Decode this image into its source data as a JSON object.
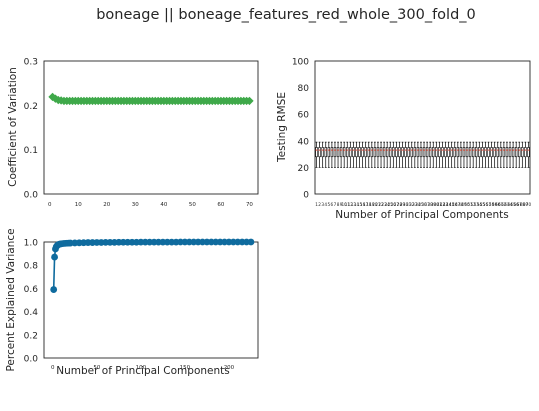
{
  "figure": {
    "title": "boneage || boneage_features_red_whole_300_fold_0"
  },
  "chart_data": [
    {
      "id": "cv",
      "type": "scatter",
      "title": "",
      "xlabel": "",
      "ylabel": "Coefficient of Variation",
      "xlim": [
        -2,
        73
      ],
      "ylim": [
        0,
        0.3
      ],
      "xticks": [
        0,
        10,
        20,
        30,
        40,
        50,
        60,
        70
      ],
      "yticks": [
        0.0,
        0.1,
        0.2,
        0.3
      ],
      "ytick_labels": [
        "0.0",
        "0.1",
        "0.2",
        "0.3"
      ],
      "marker": "diamond",
      "color": "#3fa94a",
      "series": [
        {
          "x": [
            1,
            2,
            3,
            4,
            5,
            6,
            7,
            8,
            9,
            10,
            11,
            12,
            13,
            14,
            15,
            16,
            17,
            18,
            19,
            20,
            21,
            22,
            23,
            24,
            25,
            26,
            27,
            28,
            29,
            30,
            31,
            32,
            33,
            34,
            35,
            36,
            37,
            38,
            39,
            40,
            41,
            42,
            43,
            44,
            45,
            46,
            47,
            48,
            49,
            50,
            51,
            52,
            53,
            54,
            55,
            56,
            57,
            58,
            59,
            60,
            61,
            62,
            63,
            64,
            65,
            66,
            67,
            68,
            69,
            70
          ],
          "y": [
            0.219,
            0.215,
            0.212,
            0.211,
            0.21,
            0.21,
            0.21,
            0.21,
            0.21,
            0.21,
            0.21,
            0.21,
            0.21,
            0.21,
            0.21,
            0.21,
            0.21,
            0.21,
            0.21,
            0.21,
            0.21,
            0.21,
            0.21,
            0.21,
            0.21,
            0.21,
            0.21,
            0.21,
            0.21,
            0.21,
            0.21,
            0.21,
            0.21,
            0.21,
            0.21,
            0.21,
            0.21,
            0.21,
            0.21,
            0.21,
            0.21,
            0.21,
            0.21,
            0.21,
            0.21,
            0.21,
            0.21,
            0.21,
            0.21,
            0.21,
            0.21,
            0.21,
            0.21,
            0.21,
            0.21,
            0.21,
            0.21,
            0.21,
            0.21,
            0.21,
            0.21,
            0.21,
            0.21,
            0.21,
            0.21,
            0.21,
            0.21,
            0.21,
            0.21,
            0.21
          ]
        }
      ]
    },
    {
      "id": "rmse",
      "type": "boxplot",
      "title": "",
      "xlabel": "Number of Principal Components",
      "ylabel": "Testing RMSE",
      "ylim": [
        0,
        100
      ],
      "yticks": [
        0,
        20,
        40,
        60,
        80,
        100
      ],
      "xtick_label_count": 70,
      "box_count": 70,
      "box_stats": {
        "whisker_low": [
          20,
          20,
          20,
          20,
          20,
          20,
          20,
          20,
          20,
          20,
          20,
          20,
          20,
          20,
          20,
          20,
          20,
          20,
          20,
          20,
          20,
          20,
          20,
          20,
          20,
          20,
          20,
          20,
          20,
          20,
          20,
          20,
          20,
          20,
          20,
          20,
          20,
          20,
          20,
          20,
          20,
          20,
          20,
          20,
          20,
          20,
          20,
          20,
          20,
          20,
          20,
          20,
          20,
          20,
          20,
          20,
          20,
          20,
          20,
          20,
          20,
          20,
          20,
          20,
          20,
          20,
          20,
          20,
          20,
          20
        ],
        "q1": [
          28,
          28,
          28,
          28,
          28,
          28,
          28,
          28,
          28,
          28,
          28,
          28,
          28,
          28,
          28,
          28,
          28,
          28,
          28,
          28,
          28,
          28,
          28,
          28,
          28,
          28,
          28,
          28,
          28,
          28,
          28,
          28,
          28,
          28,
          28,
          28,
          28,
          28,
          28,
          28,
          28,
          28,
          28,
          28,
          28,
          28,
          28,
          28,
          28,
          28,
          28,
          28,
          28,
          28,
          28,
          28,
          28,
          28,
          28,
          28,
          28,
          28,
          28,
          28,
          28,
          28,
          28,
          28,
          28,
          28
        ],
        "median": [
          33,
          33,
          33,
          33,
          33,
          33,
          33,
          33,
          33,
          33,
          33,
          33,
          33,
          33,
          33,
          33,
          33,
          33,
          33,
          33,
          33,
          33,
          33,
          33,
          33,
          33,
          33,
          33,
          33,
          33,
          33,
          33,
          33,
          33,
          33,
          33,
          33,
          33,
          33,
          33,
          33,
          33,
          33,
          33,
          33,
          33,
          33,
          33,
          33,
          33,
          33,
          33,
          33,
          33,
          33,
          33,
          33,
          33,
          33,
          33,
          33,
          33,
          33,
          33,
          33,
          33,
          33,
          33,
          33,
          33
        ],
        "q3": [
          35,
          35,
          35,
          35,
          35,
          35,
          35,
          35,
          35,
          35,
          35,
          35,
          35,
          35,
          35,
          35,
          35,
          35,
          35,
          35,
          35,
          35,
          35,
          35,
          35,
          35,
          35,
          35,
          35,
          35,
          35,
          35,
          35,
          35,
          35,
          35,
          35,
          35,
          35,
          35,
          35,
          35,
          35,
          35,
          35,
          35,
          35,
          35,
          35,
          35,
          35,
          35,
          35,
          35,
          35,
          35,
          35,
          35,
          35,
          35,
          35,
          35,
          35,
          35,
          35,
          35,
          35,
          35,
          35,
          35
        ],
        "whisker_high": [
          39,
          39,
          39,
          39,
          39,
          39,
          39,
          39,
          39,
          39,
          39,
          39,
          39,
          39,
          39,
          39,
          39,
          39,
          39,
          39,
          39,
          39,
          39,
          39,
          39,
          39,
          39,
          39,
          39,
          39,
          39,
          39,
          39,
          39,
          39,
          39,
          39,
          39,
          39,
          39,
          39,
          39,
          39,
          39,
          39,
          39,
          39,
          39,
          39,
          39,
          39,
          39,
          39,
          39,
          39,
          39,
          39,
          39,
          39,
          39,
          39,
          39,
          39,
          39,
          39,
          39,
          39,
          39,
          39,
          39
        ]
      },
      "median_color": "#e8432e",
      "box_color": "#000000"
    },
    {
      "id": "pev",
      "type": "line",
      "title": "",
      "xlabel": "Number of Principal Components",
      "ylabel": "Percent Explained Variance",
      "xlim": [
        -10,
        233
      ],
      "ylim": [
        0,
        1.0
      ],
      "xticks": [
        0,
        50,
        100,
        150,
        200
      ],
      "yticks": [
        0.0,
        0.2,
        0.4,
        0.6,
        0.8,
        1.0
      ],
      "ytick_labels": [
        "0.0",
        "0.2",
        "0.4",
        "0.6",
        "0.8",
        "1.0"
      ],
      "color": "#0f6b9e",
      "marker": "circle",
      "series": [
        {
          "x": [
            1,
            2,
            3,
            4,
            5,
            6,
            7,
            8,
            9,
            10,
            12,
            14,
            16,
            18,
            20,
            25,
            30,
            35,
            40,
            45,
            50,
            55,
            60,
            65,
            70,
            75,
            80,
            85,
            90,
            95,
            100,
            105,
            110,
            115,
            120,
            125,
            130,
            135,
            140,
            145,
            150,
            155,
            160,
            165,
            170,
            175,
            180,
            185,
            190,
            195,
            200,
            205,
            210,
            215,
            220,
            225
          ],
          "y": [
            0.59,
            0.87,
            0.94,
            0.96,
            0.97,
            0.975,
            0.98,
            0.982,
            0.984,
            0.985,
            0.987,
            0.988,
            0.989,
            0.99,
            0.991,
            0.992,
            0.993,
            0.994,
            0.995,
            0.995,
            0.996,
            0.996,
            0.997,
            0.997,
            0.997,
            0.998,
            0.998,
            0.998,
            0.998,
            0.998,
            0.999,
            0.999,
            0.999,
            0.999,
            0.999,
            0.999,
            0.999,
            0.999,
            0.999,
            1.0,
            1.0,
            1.0,
            1.0,
            1.0,
            1.0,
            1.0,
            1.0,
            1.0,
            1.0,
            1.0,
            1.0,
            1.0,
            1.0,
            1.0,
            1.0,
            1.0
          ]
        }
      ]
    }
  ]
}
